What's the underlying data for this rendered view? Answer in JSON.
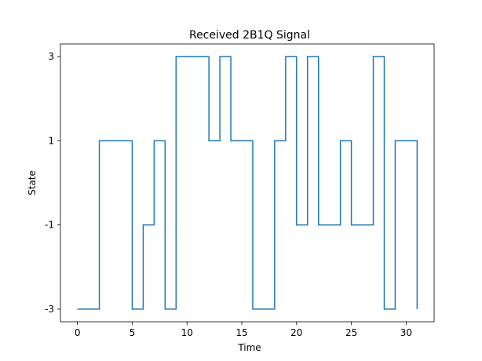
{
  "chart_data": {
    "type": "line",
    "title": "Received 2B1Q Signal",
    "xlabel": "Time",
    "ylabel": "State",
    "xlim": [
      -1.55,
      32.55
    ],
    "ylim": [
      -3.3,
      3.3
    ],
    "xticks": [
      0,
      5,
      10,
      15,
      20,
      25,
      30
    ],
    "yticks": [
      -3,
      -1,
      1,
      3
    ],
    "ytick_labels": [
      "-3",
      "-1",
      "1",
      "3"
    ],
    "grid": false,
    "color": "#1f77b4",
    "series": [
      {
        "x": [
          0,
          1,
          2,
          3,
          4,
          5,
          6,
          7,
          8,
          9,
          10,
          11,
          12,
          13,
          14,
          15,
          16,
          17,
          18,
          19,
          20,
          21,
          22,
          23,
          24,
          25,
          26,
          27,
          28,
          29,
          30,
          31
        ],
        "values": [
          -3,
          -3,
          1,
          1,
          1,
          -3,
          -1,
          1,
          -3,
          3,
          3,
          3,
          1,
          3,
          1,
          1,
          -3,
          -3,
          1,
          3,
          -1,
          3,
          -1,
          -1,
          1,
          -1,
          -1,
          3,
          -3,
          1,
          1,
          -3
        ]
      }
    ]
  }
}
